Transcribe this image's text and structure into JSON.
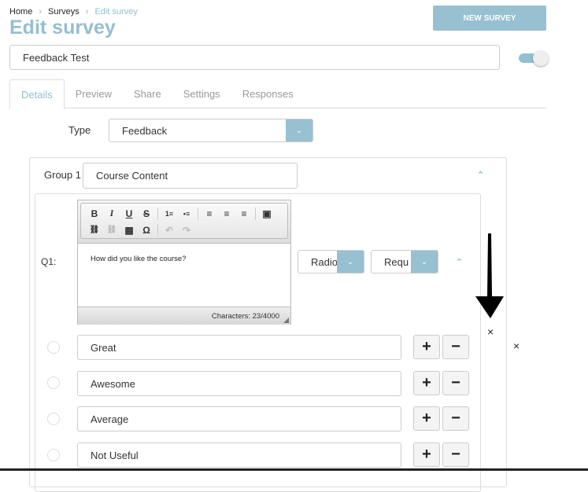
{
  "breadcrumb": [
    "Home",
    "Surveys",
    "Edit survey"
  ],
  "breadcrumb_separator": "›",
  "title": "Edit survey",
  "new_survey_label": "NEW SURVEY",
  "survey_name": "Feedback Test",
  "active_toggle": {
    "on": true
  },
  "tabs": [
    {
      "label": "Details",
      "active": true
    },
    {
      "label": "Preview"
    },
    {
      "label": "Share"
    },
    {
      "label": "Settings"
    },
    {
      "label": "Responses"
    }
  ],
  "type": {
    "label": "Type",
    "value": "Feedback"
  },
  "group": {
    "label": "Group 1",
    "name": "Course Content"
  },
  "question": {
    "label": "Q1:",
    "text": "How did you like the course?",
    "char_count": "Characters: 23/4000",
    "answer_type": "Radio",
    "required": "Requ",
    "toolbar": [
      "B",
      "I",
      "U",
      "S",
      "1≡",
      "•≡",
      "≡",
      "≡",
      "≡",
      "▣",
      "⛓",
      "⛓",
      "▦",
      "Ω",
      "↶",
      "↷"
    ]
  },
  "options": [
    "Great",
    "Awesome",
    "Average",
    "Not Useful"
  ],
  "plus": "+",
  "minus": "−",
  "close": "×",
  "colors": {
    "accent": "#94bfcf",
    "button": "#97c0d0"
  }
}
